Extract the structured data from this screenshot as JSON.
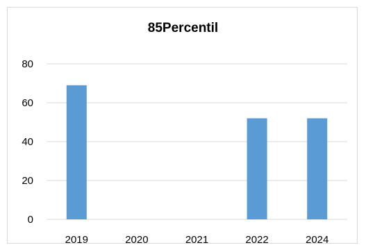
{
  "chart_data": {
    "type": "bar",
    "title": "85Percentil",
    "xlabel": "",
    "ylabel": "",
    "categories": [
      "2019",
      "2020",
      "2021",
      "2022",
      "2024"
    ],
    "values": [
      69,
      0,
      0,
      52,
      52
    ],
    "ylim": [
      0,
      80
    ],
    "yticks": [
      0,
      20,
      40,
      60,
      80
    ],
    "grid": true,
    "legend": "none",
    "bar_color": "#5b9bd5",
    "grid_color": "#d9d9d9"
  }
}
